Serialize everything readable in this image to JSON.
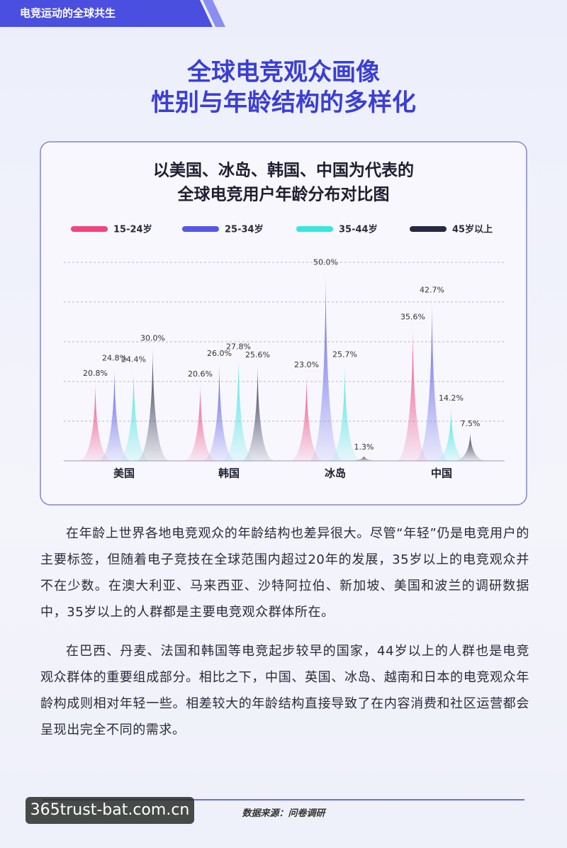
{
  "header": {
    "tab": "电竞运动的全球共生"
  },
  "title": [
    "全球电竞观众画像",
    "性别与年龄结构的多样化"
  ],
  "chart_data": {
    "type": "bar",
    "title": [
      "以美国、冰岛、韩国、中国为代表的",
      "全球电竞用户年龄分布对比图"
    ],
    "categories": [
      "美国",
      "韩国",
      "冰岛",
      "中国"
    ],
    "series": [
      {
        "name": "15-24岁",
        "color": "#f0457f",
        "values": [
          20.8,
          20.6,
          23.0,
          35.6
        ],
        "value_labels": [
          "20.8%",
          "20.6%",
          "23.0%",
          "35.6%"
        ]
      },
      {
        "name": "25-34岁",
        "color": "#5557e6",
        "values": [
          24.8,
          26.0,
          50.0,
          42.7
        ],
        "value_labels": [
          "24.8%",
          "26.0%",
          "50.0%",
          "42.7%"
        ]
      },
      {
        "name": "35-44岁",
        "color": "#38e6e0",
        "values": [
          24.4,
          27.8,
          25.7,
          14.2
        ],
        "value_labels": [
          "24.4%",
          "27.8%",
          "25.7%",
          "14.2%"
        ]
      },
      {
        "name": "45岁以上",
        "color": "#262844",
        "values": [
          30.0,
          25.6,
          1.3,
          7.5
        ],
        "value_labels": [
          "30.0%",
          "25.6%",
          "1.3%",
          "7.5%"
        ]
      }
    ],
    "ylim": [
      0,
      52
    ]
  },
  "paragraphs": [
    "在年龄上世界各地电竞观众的年龄结构也差异很大。尽管“年轻”仍是电竞用户的主要标签，但随着电子竞技在全球范围内超过20年的发展，35岁以上的电竞观众并不在少数。在澳大利亚、马来西亚、沙特阿拉伯、新加坡、美国和波兰的调研数据中，35岁以上的人群都是主要电竞观众群体所在。",
    "在巴西、丹麦、法国和韩国等电竞起步较早的国家，44岁以上的人群也是电竞观众群体的重要组成部分。相比之下，中国、英国、冰岛、越南和日本的电竞观众年龄构成则相对年轻一些。相差较大的年龄结构直接导致了在内容消费和社区运营都会呈现出完全不同的需求。"
  ],
  "source": "数据来源：问卷调研",
  "watermark": "365trust-bat.com.cn"
}
